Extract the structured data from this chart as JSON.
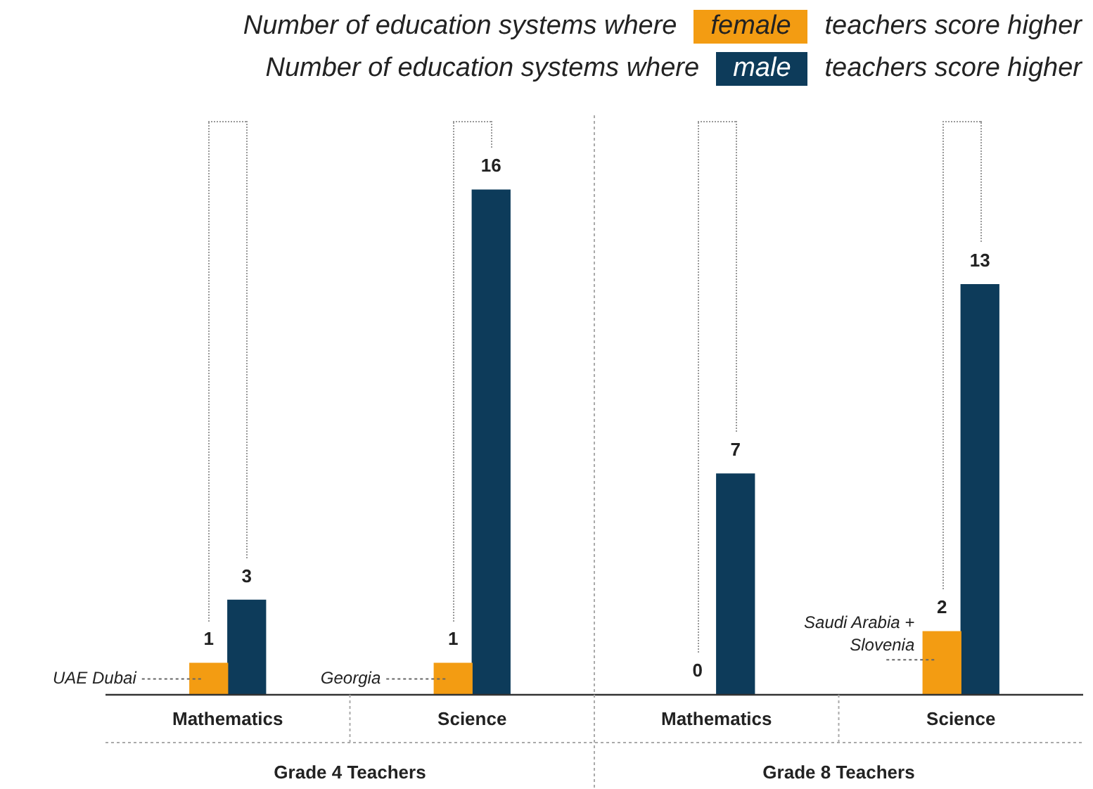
{
  "chart_data": {
    "type": "bar",
    "legend_title": "Number of education systems where",
    "subtitle": "teachers score higher",
    "categories": [
      "Mathematics",
      "Science",
      "Mathematics",
      "Science"
    ],
    "series": [
      {
        "name": "female",
        "color": "#f39c12",
        "values": [
          1,
          1,
          0,
          2
        ]
      },
      {
        "name": "male",
        "color": "#0d3b5a",
        "values": [
          3,
          16,
          7,
          13
        ]
      }
    ],
    "data_labels": true,
    "legend": "top right",
    "annotations": [
      "UAE Dubai",
      "Georgia",
      "Saudi Arabia + Slovenia",
      "Grade 4 Teachers",
      "Grade 8 Teachers"
    ]
  }
}
